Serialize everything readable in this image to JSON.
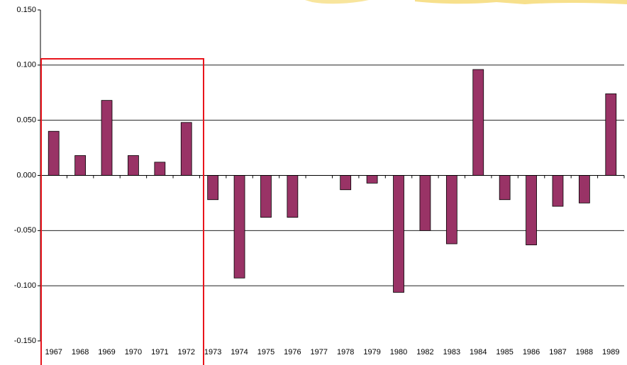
{
  "chart_data": {
    "type": "bar",
    "categories": [
      "1967",
      "1968",
      "1969",
      "1970",
      "1971",
      "1972",
      "1973",
      "1974",
      "1975",
      "1976",
      "1977",
      "1978",
      "1979",
      "1980",
      "1982",
      "1983",
      "1984",
      "1985",
      "1986",
      "1987",
      "1988",
      "1989"
    ],
    "values": [
      0.04,
      0.018,
      0.068,
      0.018,
      0.012,
      0.048,
      -0.022,
      -0.093,
      -0.038,
      -0.038,
      0,
      -0.013,
      -0.007,
      -0.106,
      -0.05,
      -0.062,
      0.096,
      -0.022,
      -0.063,
      -0.028,
      -0.025,
      0.074
    ],
    "color": "#993366",
    "ylim": [
      -0.15,
      0.15
    ],
    "yticks": [
      {
        "value": 0.15,
        "label": "0.150"
      },
      {
        "value": 0.1,
        "label": "0.100"
      },
      {
        "value": 0.05,
        "label": "0.050"
      },
      {
        "value": 0,
        "label": "0.000"
      },
      {
        "value": -0.05,
        "label": "-0.050"
      },
      {
        "value": -0.1,
        "label": "-0.100"
      },
      {
        "value": -0.15,
        "label": "-0.150"
      }
    ],
    "grid": true
  }
}
